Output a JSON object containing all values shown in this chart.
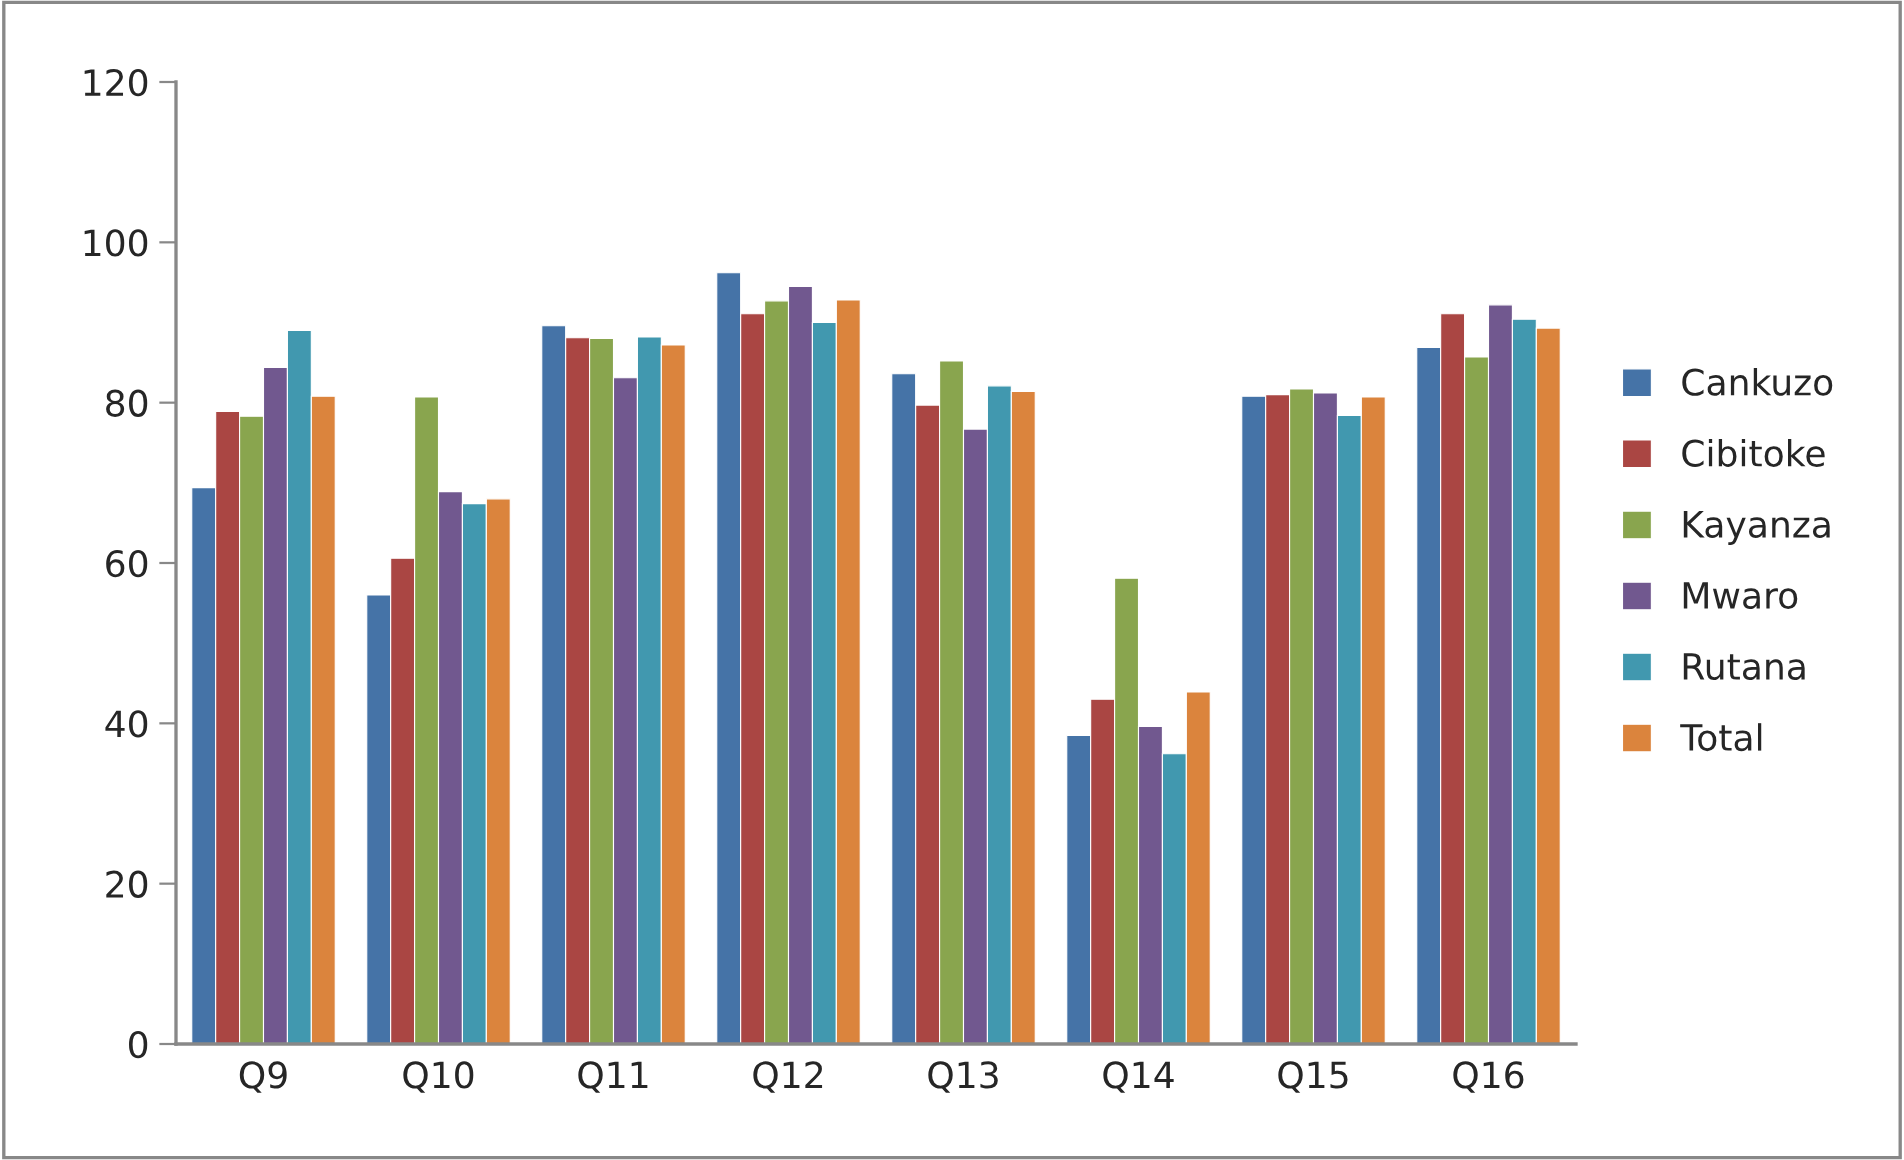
{
  "chart_data": {
    "type": "bar",
    "categories": [
      "Q9",
      "Q10",
      "Q11",
      "Q12",
      "Q13",
      "Q14",
      "Q15",
      "Q16"
    ],
    "series": [
      {
        "name": "Cankuzo",
        "color": "#4573a7",
        "values": [
          69.4,
          56.0,
          89.6,
          96.2,
          83.6,
          38.5,
          80.8,
          86.9
        ]
      },
      {
        "name": "Cibitoke",
        "color": "#aa4643",
        "values": [
          78.9,
          60.6,
          88.1,
          91.1,
          79.7,
          43.0,
          81.0,
          91.1
        ]
      },
      {
        "name": "Kayanza",
        "color": "#89a54e",
        "values": [
          78.3,
          80.7,
          88.0,
          92.7,
          85.2,
          58.1,
          81.7,
          85.7
        ]
      },
      {
        "name": "Mwaro",
        "color": "#71588f",
        "values": [
          84.4,
          68.9,
          83.1,
          94.5,
          76.7,
          39.6,
          81.2,
          92.2
        ]
      },
      {
        "name": "Rutana",
        "color": "#4198af",
        "values": [
          89.0,
          67.4,
          88.2,
          90.0,
          82.1,
          36.2,
          78.4,
          90.4
        ]
      },
      {
        "name": "Total",
        "color": "#db843d",
        "values": [
          80.8,
          68.0,
          87.2,
          92.8,
          81.4,
          43.9,
          80.7,
          89.3
        ]
      }
    ],
    "ylim": [
      0,
      120
    ],
    "yticks": [
      0,
      20,
      40,
      60,
      80,
      100,
      120
    ],
    "grid": false,
    "legend": "right"
  }
}
